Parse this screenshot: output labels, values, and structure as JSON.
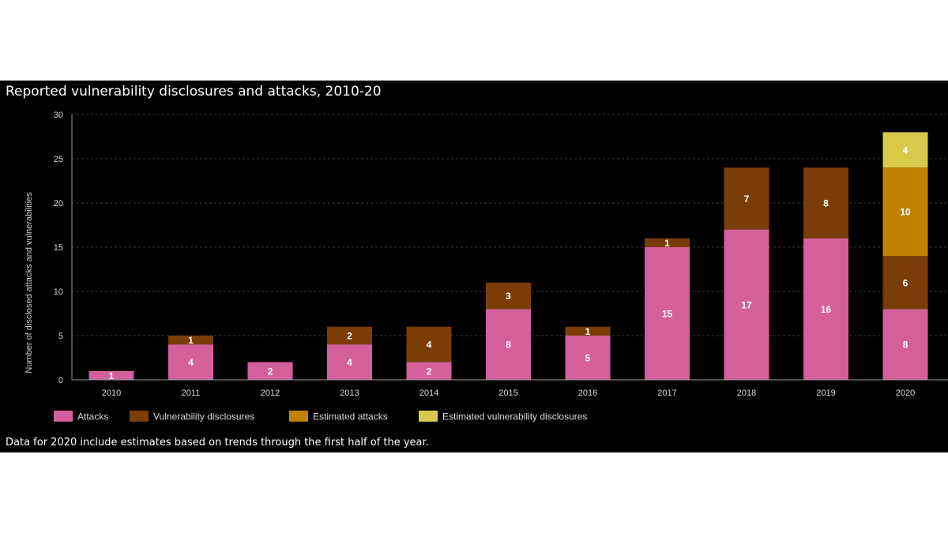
{
  "title": "Reported vulnerability disclosures and attacks, 2010-20",
  "footnote": "Data for 2020 include estimates based on trends through the first half of the year.",
  "chart_data": {
    "type": "bar",
    "stacked": true,
    "categories": [
      "2010",
      "2011",
      "2012",
      "2013",
      "2014",
      "2015",
      "2016",
      "2017",
      "2018",
      "2019",
      "2020"
    ],
    "series": [
      {
        "name": "Attacks",
        "color": "#d4609a",
        "values": [
          1,
          4,
          2,
          4,
          2,
          8,
          5,
          15,
          17,
          16,
          8
        ]
      },
      {
        "name": "Vulnerability disclosures",
        "color": "#7a3d08",
        "values": [
          0,
          1,
          0,
          2,
          4,
          3,
          1,
          1,
          7,
          8,
          6
        ]
      },
      {
        "name": "Estimated attacks",
        "color": "#c18202",
        "values": [
          0,
          0,
          0,
          0,
          0,
          0,
          0,
          0,
          0,
          0,
          10
        ]
      },
      {
        "name": "Estimated vulnerability disclosures",
        "color": "#d9ca4c",
        "values": [
          0,
          0,
          0,
          0,
          0,
          0,
          0,
          0,
          0,
          0,
          4
        ]
      }
    ],
    "ylabel": "Number of disclosed attacks and vulnerabilities",
    "xlabel": "",
    "ylim": [
      0,
      30
    ],
    "yticks": [
      0,
      5,
      10,
      15,
      20,
      25,
      30
    ],
    "grid": true,
    "legend": "bottom-left"
  }
}
